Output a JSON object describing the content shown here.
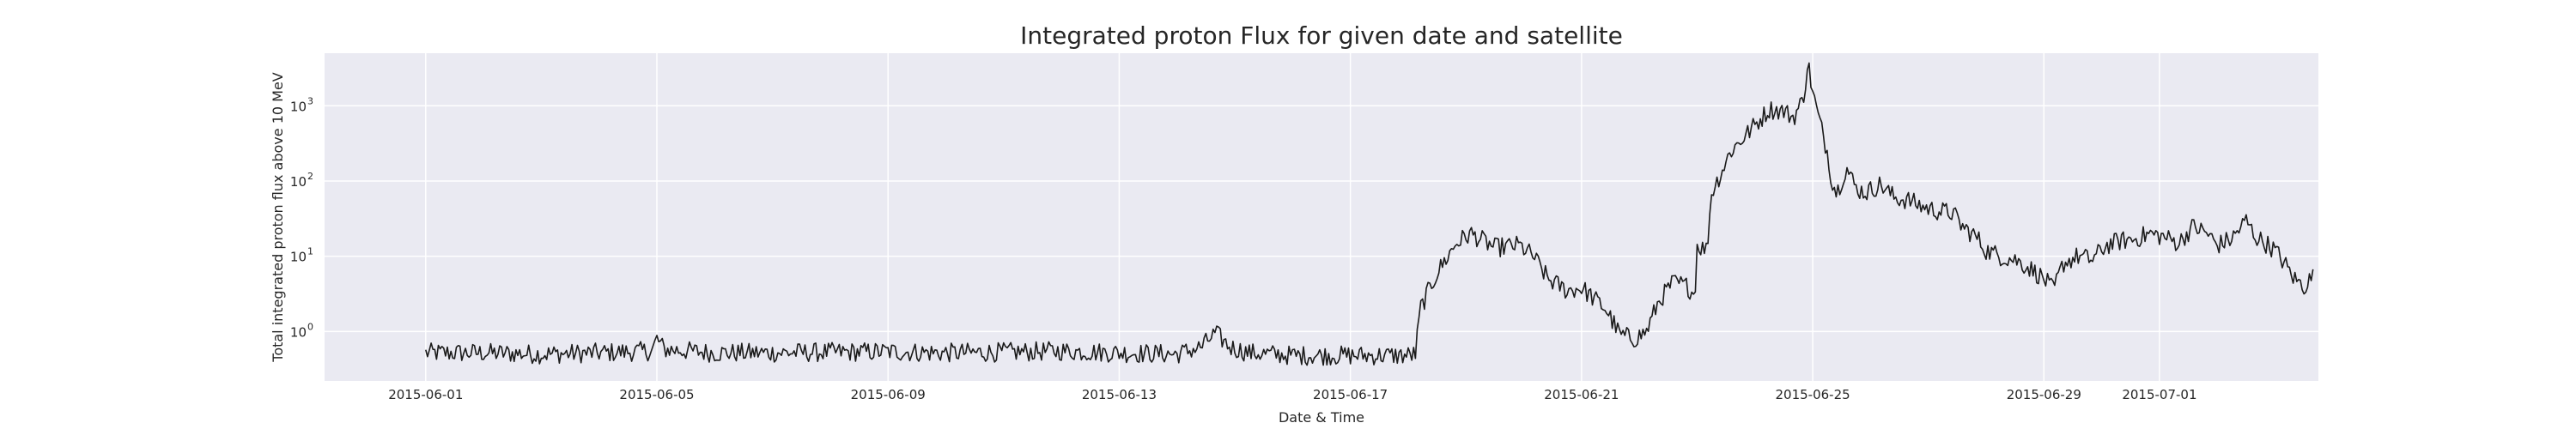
{
  "chart_data": {
    "type": "line",
    "title": "Integrated proton Flux for given date and satellite",
    "xlabel": "Date & Time",
    "ylabel": "Total integrated proton flux above 10 MeV",
    "x_range": [
      "2015-05-30T06:00",
      "2015-07-03T18:00"
    ],
    "y_scale": "log",
    "ylim": [
      0.22,
      5000
    ],
    "grid": true,
    "background": "#eaeaf2",
    "grid_color": "#ffffff",
    "line_color": "#1a1a1a",
    "x_ticks": [
      {
        "date": "2015-06-01",
        "label": "2015-06-01"
      },
      {
        "date": "2015-06-05",
        "label": "2015-06-05"
      },
      {
        "date": "2015-06-09",
        "label": "2015-06-09"
      },
      {
        "date": "2015-06-13",
        "label": "2015-06-13"
      },
      {
        "date": "2015-06-17",
        "label": "2015-06-17"
      },
      {
        "date": "2015-06-21",
        "label": "2015-06-21"
      },
      {
        "date": "2015-06-25",
        "label": "2015-06-25"
      },
      {
        "date": "2015-06-29",
        "label": "2015-06-29"
      },
      {
        "date": "2015-07-01",
        "label": "2015-07-01"
      }
    ],
    "y_ticks": [
      {
        "value": 1,
        "base": "10",
        "exp": "0"
      },
      {
        "value": 10,
        "base": "10",
        "exp": "1"
      },
      {
        "value": 100,
        "base": "10",
        "exp": "2"
      },
      {
        "value": 1000,
        "base": "10",
        "exp": "3"
      }
    ],
    "series": [
      {
        "noise": 0.13,
        "points": [
          [
            "2015-06-01T00:00",
            0.52
          ],
          [
            "2015-06-02T00:00",
            0.52
          ],
          [
            "2015-06-03T00:00",
            0.5
          ],
          [
            "2015-06-04T00:00",
            0.52
          ],
          [
            "2015-06-04T22:00",
            0.55
          ],
          [
            "2015-06-05T00:00",
            0.8
          ],
          [
            "2015-06-05T03:00",
            0.58
          ],
          [
            "2015-06-06T00:00",
            0.52
          ],
          [
            "2015-06-07T00:00",
            0.52
          ],
          [
            "2015-06-08T00:00",
            0.53
          ],
          [
            "2015-06-09T00:00",
            0.54
          ],
          [
            "2015-06-10T00:00",
            0.52
          ],
          [
            "2015-06-11T00:00",
            0.53
          ],
          [
            "2015-06-12T00:00",
            0.55
          ],
          [
            "2015-06-13T00:00",
            0.52
          ],
          [
            "2015-06-14T00:00",
            0.5
          ],
          [
            "2015-06-14T10:00",
            0.62
          ],
          [
            "2015-06-14T16:00",
            0.95
          ],
          [
            "2015-06-14T22:00",
            0.62
          ],
          [
            "2015-06-15T06:00",
            0.52
          ],
          [
            "2015-06-16T00:00",
            0.48
          ],
          [
            "2015-06-17T00:00",
            0.48
          ],
          [
            "2015-06-18T00:00",
            0.48
          ],
          [
            "2015-06-18T03:00",
            0.5
          ],
          [
            "2015-06-18T05:00",
            2.0
          ],
          [
            "2015-06-18T12:00",
            6.0
          ],
          [
            "2015-06-18T20:00",
            15.0
          ],
          [
            "2015-06-19T02:00",
            20.0
          ],
          [
            "2015-06-19T12:00",
            13.0
          ],
          [
            "2015-06-19T22:00",
            14.0
          ],
          [
            "2015-06-20T04:00",
            10.0
          ],
          [
            "2015-06-20T10:00",
            5.0
          ],
          [
            "2015-06-20T18:00",
            3.5
          ],
          [
            "2015-06-21T00:00",
            3.8
          ],
          [
            "2015-06-21T10:00",
            2.0
          ],
          [
            "2015-06-21T16:00",
            0.9
          ],
          [
            "2015-06-21T22:00",
            0.8
          ],
          [
            "2015-06-22T03:00",
            1.0
          ],
          [
            "2015-06-22T08:00",
            2.5
          ],
          [
            "2015-06-22T14:00",
            4.5
          ],
          [
            "2015-06-22T20:00",
            4.0
          ],
          [
            "2015-06-22T23:00",
            3.0
          ],
          [
            "2015-06-23T00:00",
            14.0
          ],
          [
            "2015-06-23T04:00",
            12.0
          ],
          [
            "2015-06-23T06:00",
            70.0
          ],
          [
            "2015-06-23T10:00",
            130.0
          ],
          [
            "2015-06-23T14:00",
            250.0
          ],
          [
            "2015-06-23T20:00",
            400.0
          ],
          [
            "2015-06-24T02:00",
            650.0
          ],
          [
            "2015-06-24T06:00",
            900.0
          ],
          [
            "2015-06-24T12:00",
            850.0
          ],
          [
            "2015-06-24T16:00",
            700.0
          ],
          [
            "2015-06-24T20:00",
            1200.0
          ],
          [
            "2015-06-24T22:00",
            3800.0
          ],
          [
            "2015-06-25T00:00",
            1500.0
          ],
          [
            "2015-06-25T02:00",
            800.0
          ],
          [
            "2015-06-25T06:00",
            250.0
          ],
          [
            "2015-06-25T08:00",
            100.0
          ],
          [
            "2015-06-25T10:00",
            70.0
          ],
          [
            "2015-06-25T14:00",
            150.0
          ],
          [
            "2015-06-25T18:00",
            80.0
          ],
          [
            "2015-06-25T22:00",
            70.0
          ],
          [
            "2015-06-26T04:00",
            90.0
          ],
          [
            "2015-06-26T10:00",
            60.0
          ],
          [
            "2015-06-26T16:00",
            55.0
          ],
          [
            "2015-06-26T22:00",
            45.0
          ],
          [
            "2015-06-27T04:00",
            40.0
          ],
          [
            "2015-06-27T10:00",
            38.0
          ],
          [
            "2015-06-27T14:00",
            25.0
          ],
          [
            "2015-06-27T20:00",
            18.0
          ],
          [
            "2015-06-28T00:00",
            12.0
          ],
          [
            "2015-06-28T06:00",
            10.0
          ],
          [
            "2015-06-28T12:00",
            9.0
          ],
          [
            "2015-06-28T18:00",
            7.0
          ],
          [
            "2015-06-29T00:00",
            5.0
          ],
          [
            "2015-06-29T04:00",
            3.5
          ],
          [
            "2015-06-29T08:00",
            8.0
          ],
          [
            "2015-06-29T14:00",
            10.0
          ],
          [
            "2015-06-29T20:00",
            9.0
          ],
          [
            "2015-06-30T02:00",
            14.0
          ],
          [
            "2015-06-30T08:00",
            16.0
          ],
          [
            "2015-06-30T14:00",
            17.0
          ],
          [
            "2015-06-30T20:00",
            20.0
          ],
          [
            "2015-07-01T02:00",
            18.0
          ],
          [
            "2015-07-01T08:00",
            15.0
          ],
          [
            "2015-07-01T14:00",
            25.0
          ],
          [
            "2015-07-01T20:00",
            20.0
          ],
          [
            "2015-07-02T00:00",
            14.0
          ],
          [
            "2015-07-02T06:00",
            17.0
          ],
          [
            "2015-07-02T12:00",
            30.0
          ],
          [
            "2015-07-02T16:00",
            18.0
          ],
          [
            "2015-07-02T20:00",
            15.0
          ],
          [
            "2015-07-03T00:00",
            12.0
          ],
          [
            "2015-07-03T04:00",
            8.0
          ],
          [
            "2015-07-03T08:00",
            5.0
          ],
          [
            "2015-07-03T12:00",
            4.0
          ],
          [
            "2015-07-03T16:00",
            5.5
          ]
        ]
      }
    ]
  }
}
